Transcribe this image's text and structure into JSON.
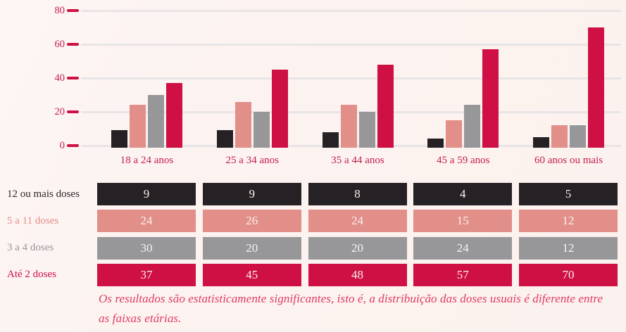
{
  "colors": {
    "background": "#fcf2ef",
    "crimson": "#ce1045",
    "salmon": "#e28e89",
    "gray": "#97979a",
    "black": "#262124",
    "gridline": "#e8e5e7",
    "axis_text": "#c32050",
    "category_text": "#c32050",
    "note_text": "#df3a63",
    "value_text": "#f9f1ee"
  },
  "chart_data": {
    "type": "bar",
    "categories": [
      "18 a 24 anos",
      "25 a 34 anos",
      "35 a 44 anos",
      "45 a 59 anos",
      "60 anos ou mais"
    ],
    "series": [
      {
        "name": "12 ou mais doses",
        "color_key": "black",
        "values": [
          9,
          9,
          8,
          4,
          5
        ]
      },
      {
        "name": "5 a 11 doses",
        "color_key": "salmon",
        "values": [
          24,
          26,
          24,
          15,
          12
        ]
      },
      {
        "name": "3 a 4 doses",
        "color_key": "gray",
        "values": [
          30,
          20,
          20,
          24,
          12
        ]
      },
      {
        "name": "Até 2 doses",
        "color_key": "crimson",
        "values": [
          37,
          45,
          48,
          57,
          70
        ]
      }
    ],
    "yticks": [
      80,
      60,
      40,
      20,
      0
    ],
    "ylim": [
      0,
      80
    ],
    "grid": true,
    "legend_position": "table-below-chart"
  },
  "note": {
    "text": "Os resultados são estatisticamente significantes, isto é, a distribuição das doses usuais é diferente entre as faixas etárias."
  }
}
